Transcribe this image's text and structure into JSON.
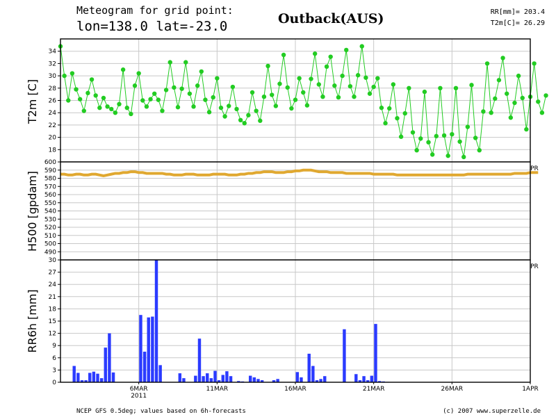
{
  "header": {
    "title_line1": "Meteogram for grid point:",
    "title_line2": "lon=138.0 lat=-23.0",
    "location": "Outback(AUS)",
    "rr_summary": "RR[mm]= 203.4",
    "t2m_summary": "T2m[C]= 26.29"
  },
  "footer": {
    "source": "NCEP GFS 0.5deg; values based on 6h-forecasts",
    "credit": "(c) 2007 www.superzelle.de"
  },
  "colors": {
    "t2m": "#22cc22",
    "h500": "#e0a830",
    "rr": "#2b3bff",
    "grid": "#c8c8c8"
  },
  "chart_data": [
    {
      "type": "line",
      "panel": "temperature",
      "ylabel": "T2m [C]",
      "ylim": [
        16,
        36
      ],
      "yticks": [
        18,
        20,
        22,
        24,
        26,
        28,
        30,
        32,
        34
      ],
      "xaxis": {
        "range_days": [
          0,
          30
        ],
        "ticks": [
          {
            "day": 5,
            "label": "6MAR",
            "sublabel": "2011"
          },
          {
            "day": 10,
            "label": "11MAR"
          },
          {
            "day": 15,
            "label": "16MAR"
          },
          {
            "day": 20,
            "label": "21MAR"
          },
          {
            "day": 25,
            "label": "26MAR"
          },
          {
            "day": 30,
            "label": "1APR"
          }
        ]
      },
      "grid": true,
      "series": [
        {
          "marker": "circle",
          "x_step_days": 0.25,
          "values": [
            34.8,
            30,
            26,
            30.4,
            27.8,
            26.2,
            24.3,
            27.2,
            29.4,
            26.8,
            24.8,
            26.4,
            25,
            24.6,
            24,
            25.4,
            31,
            24.8,
            23.8,
            28.4,
            30.4,
            26,
            25,
            26.2,
            27.1,
            26.1,
            24.3,
            27.7,
            32.2,
            28.1,
            24.9,
            27.9,
            32.2,
            27.1,
            25,
            28.4,
            30.7,
            26.1,
            24.1,
            26.5,
            29.6,
            24.8,
            23.4,
            25.1,
            28.2,
            24.6,
            22.8,
            22.3,
            23.6,
            27.3,
            24.3,
            22.7,
            26.6,
            31.6,
            26.9,
            25.1,
            28.7,
            33.4,
            28.1,
            24.7,
            26.1,
            29.6,
            27.3,
            25.2,
            29.5,
            33.6,
            28.6,
            26.6,
            31.5,
            33.1,
            28.4,
            26.5,
            30,
            34.2,
            28.3,
            26.6,
            30.1,
            34.8,
            29.7,
            27.1,
            28.2,
            29.6,
            24.8,
            22.3,
            24.7,
            28.6,
            23.1,
            20.1,
            23.9,
            28,
            20.8,
            17.9,
            19.8,
            27.4,
            19.2,
            17.2,
            20.2,
            28,
            20.3,
            17,
            20.5,
            28,
            19.3,
            16.8,
            21.7,
            28.5,
            19.9,
            17.9,
            24.2,
            32,
            24,
            26.3,
            29.3,
            32.9,
            27.1,
            23.2,
            25.6,
            30,
            26.4,
            21.3,
            26.6,
            32,
            25.8,
            24,
            26.8
          ]
        }
      ]
    },
    {
      "type": "line",
      "panel": "geopotential",
      "ylabel": "H500 [gpdam]",
      "ylim": [
        480,
        600
      ],
      "yticks": [
        490,
        500,
        510,
        520,
        530,
        540,
        550,
        560,
        570,
        580,
        590,
        600
      ],
      "grid": true,
      "series": [
        {
          "x_step_days": 0.25,
          "values": [
            585,
            585,
            584,
            584,
            585,
            585,
            584,
            584,
            585,
            585,
            584,
            583,
            584,
            585,
            586,
            586,
            587,
            587,
            588,
            588,
            587,
            587,
            586,
            586,
            586,
            586,
            586,
            585,
            585,
            584,
            584,
            584,
            585,
            585,
            585,
            584,
            584,
            584,
            584,
            585,
            585,
            585,
            585,
            584,
            584,
            584,
            585,
            585,
            586,
            586,
            587,
            587,
            588,
            588,
            588,
            587,
            587,
            587,
            588,
            588,
            589,
            589,
            590,
            590,
            590,
            589,
            588,
            588,
            588,
            587,
            587,
            587,
            587,
            586,
            586,
            586,
            586,
            586,
            586,
            586,
            585,
            585,
            585,
            585,
            585,
            585,
            584,
            584,
            584,
            584,
            584,
            584,
            584,
            584,
            584,
            584,
            584,
            584,
            584,
            584,
            584,
            584,
            584,
            584,
            585,
            585,
            585,
            585,
            585,
            585,
            585,
            585,
            585,
            585,
            585,
            585,
            586,
            586,
            586,
            586,
            587,
            587,
            587
          ]
        }
      ]
    },
    {
      "type": "bar",
      "panel": "precipitation",
      "ylabel": "RR6h [mm]",
      "ylim": [
        0,
        30
      ],
      "yticks": [
        0,
        3,
        6,
        9,
        12,
        15,
        18,
        21,
        24,
        27,
        30
      ],
      "grid": true,
      "series": [
        {
          "x_step_days": 0.25,
          "values": [
            0,
            0,
            0,
            4,
            2.3,
            0.5,
            0.5,
            2.3,
            2.6,
            2.1,
            1,
            8.5,
            12,
            2.4,
            0,
            0,
            0,
            0,
            0,
            0,
            16.5,
            7.5,
            15.9,
            16.1,
            30,
            4.2,
            0,
            0,
            0,
            0,
            2.2,
            1,
            0,
            0,
            1.6,
            10.7,
            1.5,
            2.2,
            1,
            2.8,
            0.5,
            1.8,
            2.7,
            1.5,
            0,
            0.3,
            0.2,
            0,
            1.6,
            1.2,
            0.8,
            0.5,
            0,
            0,
            0.5,
            0.8,
            0,
            0,
            0,
            0,
            2.5,
            1.2,
            0,
            7,
            4,
            0.5,
            0.8,
            1.5,
            0,
            0,
            0,
            0,
            13,
            0,
            0,
            2,
            0.5,
            1.5,
            0.5,
            1.6,
            14.3,
            0.3,
            0.2,
            0.1
          ]
        }
      ]
    }
  ]
}
